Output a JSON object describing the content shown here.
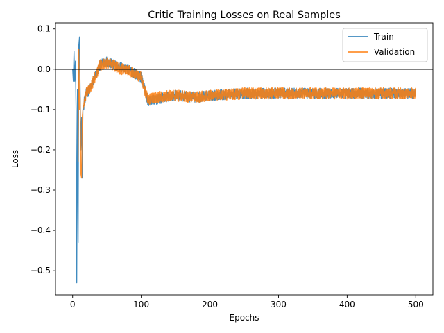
{
  "chart_data": {
    "type": "line",
    "title": "Critic Training Losses on Real Samples",
    "xlabel": "Epochs",
    "ylabel": "Loss",
    "xlim": [
      -25,
      525
    ],
    "ylim": [
      -0.56,
      0.115
    ],
    "xticks": [
      0,
      100,
      200,
      300,
      400,
      500
    ],
    "yticks": [
      0.1,
      0.0,
      -0.1,
      -0.2,
      -0.3,
      -0.4,
      -0.5
    ],
    "ytick_labels": [
      "0.1",
      "0.0",
      "−0.1",
      "−0.2",
      "−0.3",
      "−0.4",
      "−0.5"
    ],
    "hline": {
      "y": 0.0,
      "color": "#000000"
    },
    "legend_position": "upper right",
    "grid": false,
    "series": [
      {
        "name": "Train",
        "color": "#1f77b4",
        "anchors": [
          [
            0,
            0.0
          ],
          [
            1,
            -0.03
          ],
          [
            2,
            0.045
          ],
          [
            3,
            -0.03
          ],
          [
            4,
            0.02
          ],
          [
            5,
            -0.1
          ],
          [
            6,
            -0.53
          ],
          [
            7,
            -0.05
          ],
          [
            8,
            -0.43
          ],
          [
            9,
            0.06
          ],
          [
            10,
            0.08
          ],
          [
            11,
            -0.06
          ],
          [
            12,
            -0.2
          ],
          [
            13,
            -0.12
          ],
          [
            14,
            -0.27
          ],
          [
            15,
            -0.1
          ],
          [
            17,
            -0.08
          ],
          [
            20,
            -0.06
          ],
          [
            25,
            -0.05
          ],
          [
            30,
            -0.03
          ],
          [
            40,
            0.01
          ],
          [
            50,
            0.02
          ],
          [
            60,
            0.01
          ],
          [
            70,
            0.005
          ],
          [
            80,
            0.0
          ],
          [
            90,
            -0.01
          ],
          [
            100,
            -0.02
          ],
          [
            105,
            -0.05
          ],
          [
            110,
            -0.08
          ],
          [
            120,
            -0.075
          ],
          [
            150,
            -0.065
          ],
          [
            180,
            -0.07
          ],
          [
            200,
            -0.065
          ],
          [
            250,
            -0.06
          ],
          [
            300,
            -0.06
          ],
          [
            350,
            -0.06
          ],
          [
            400,
            -0.06
          ],
          [
            450,
            -0.06
          ],
          [
            500,
            -0.06
          ]
        ],
        "noise_amplitude": 0.013
      },
      {
        "name": "Validation",
        "color": "#ff7f0e",
        "anchors": [
          [
            8,
            -0.23
          ],
          [
            9,
            0.05
          ],
          [
            10,
            -0.1
          ],
          [
            11,
            -0.07
          ],
          [
            12,
            -0.26
          ],
          [
            13,
            -0.27
          ],
          [
            14,
            -0.12
          ],
          [
            15,
            -0.1
          ],
          [
            17,
            -0.08
          ],
          [
            20,
            -0.06
          ],
          [
            25,
            -0.05
          ],
          [
            30,
            -0.03
          ],
          [
            40,
            0.01
          ],
          [
            50,
            0.015
          ],
          [
            60,
            0.01
          ],
          [
            70,
            0.0
          ],
          [
            80,
            0.0
          ],
          [
            90,
            -0.01
          ],
          [
            100,
            -0.02
          ],
          [
            105,
            -0.05
          ],
          [
            110,
            -0.075
          ],
          [
            120,
            -0.07
          ],
          [
            150,
            -0.065
          ],
          [
            180,
            -0.07
          ],
          [
            200,
            -0.065
          ],
          [
            250,
            -0.06
          ],
          [
            300,
            -0.06
          ],
          [
            350,
            -0.06
          ],
          [
            400,
            -0.06
          ],
          [
            450,
            -0.06
          ],
          [
            500,
            -0.06
          ]
        ],
        "noise_amplitude": 0.014
      }
    ]
  }
}
